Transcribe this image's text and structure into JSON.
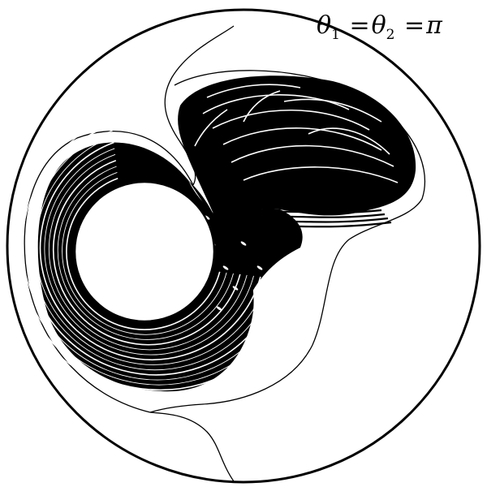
{
  "figure": {
    "annotation": {
      "theta1": "θ",
      "sub1": "1",
      "eq1": "=",
      "theta2": "θ",
      "sub2": "2",
      "eq2": "=",
      "pi": "π"
    },
    "colors": {
      "ink": "#000000",
      "paper": "#ffffff"
    }
  }
}
